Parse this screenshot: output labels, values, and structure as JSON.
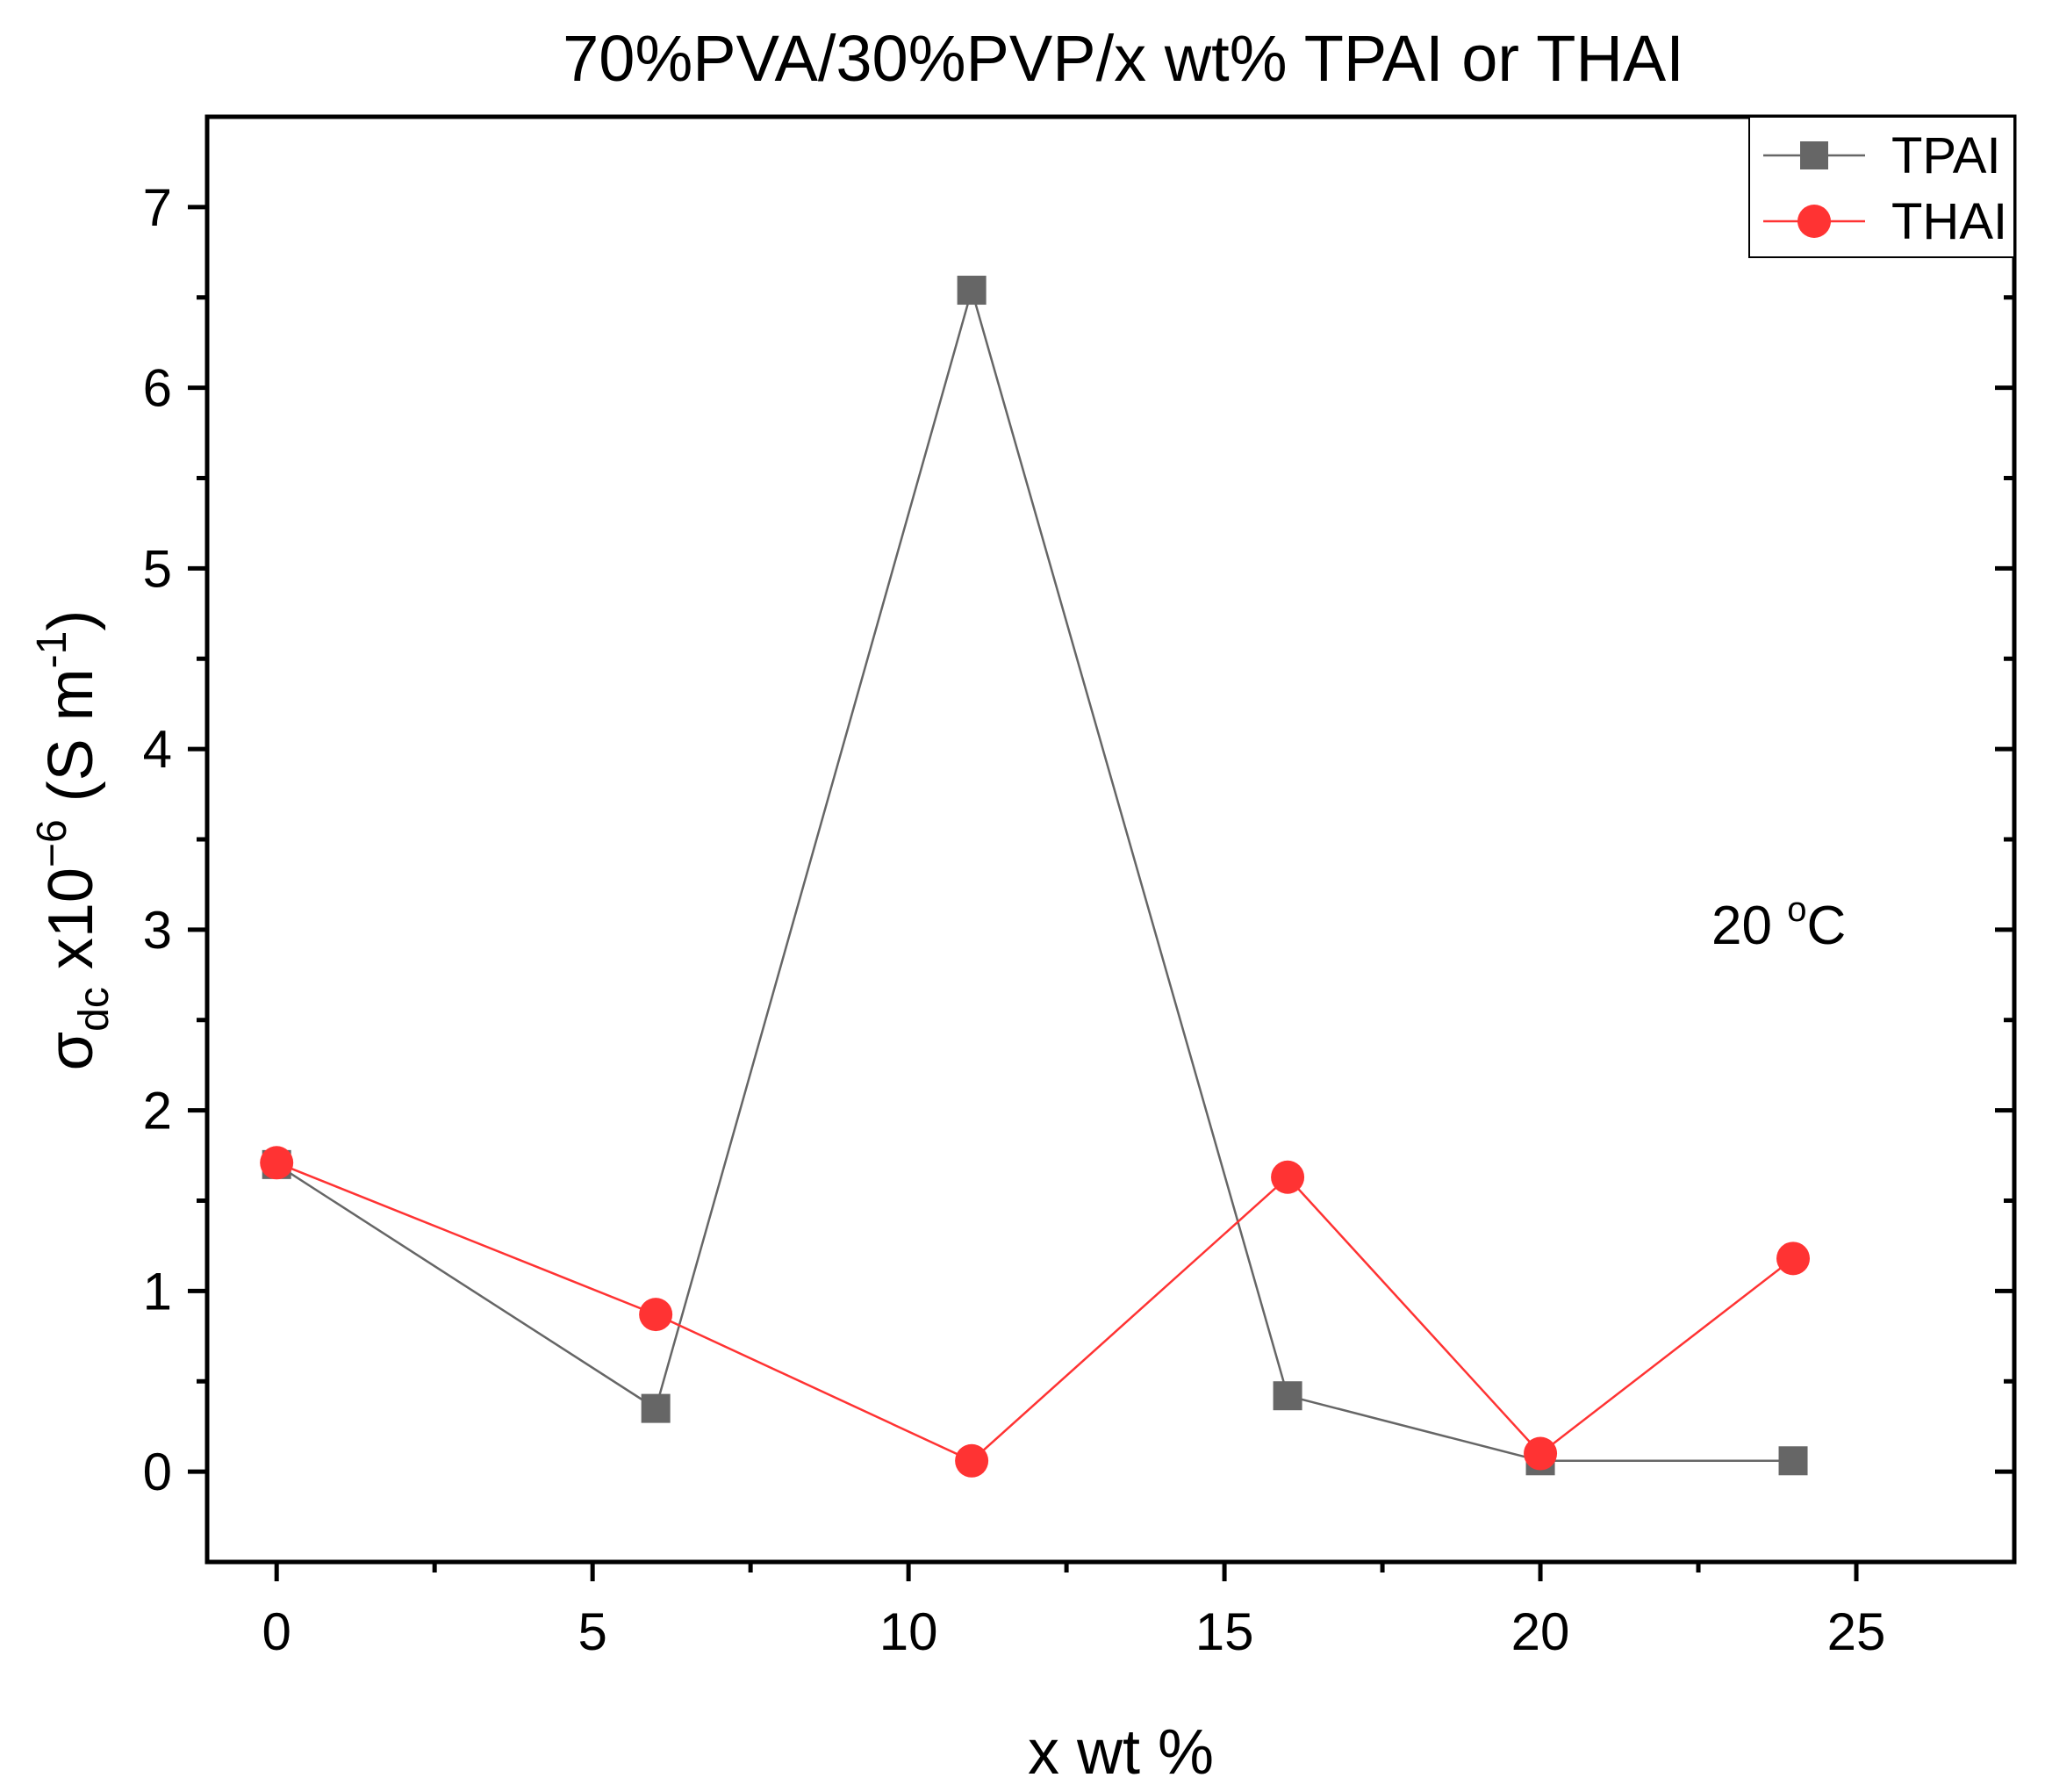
{
  "chart_data": {
    "type": "line",
    "title": "70%PVA/30%PVP/x wt% TPAI or THAI",
    "xlabel": "x wt %",
    "ylabel": {
      "symbol": "σ",
      "subscript": "dc",
      "multiplier": " x10",
      "exponent": "−6",
      "unit": " (S m",
      "unit_exponent": "-1",
      "close": ")"
    },
    "annotation": {
      "value": "20 ",
      "degree": "o",
      "unit": "C"
    },
    "xlim": [
      -1.1,
      27.5
    ],
    "ylim": [
      -0.5,
      7.5
    ],
    "xticks": [
      0,
      5,
      10,
      15,
      20,
      25
    ],
    "xtick_labels": [
      "0",
      "5",
      "10",
      "15",
      "20",
      "25"
    ],
    "yticks": [
      0,
      1,
      2,
      3,
      4,
      5,
      6,
      7
    ],
    "ytick_labels": [
      "0",
      "1",
      "2",
      "3",
      "4",
      "5",
      "6",
      "7"
    ],
    "legend_position": "top-right",
    "series": [
      {
        "name": "TPAI",
        "marker": "square",
        "color": "#666666",
        "x": [
          0,
          6,
          11,
          16,
          20,
          24
        ],
        "values": [
          1.7,
          0.35,
          6.54,
          0.42,
          0.06,
          0.06
        ]
      },
      {
        "name": "THAI",
        "marker": "circle",
        "color": "#ff3333",
        "x": [
          0,
          6,
          11,
          16,
          20,
          24
        ],
        "values": [
          1.71,
          0.87,
          0.06,
          1.63,
          0.1,
          1.18
        ]
      }
    ]
  }
}
